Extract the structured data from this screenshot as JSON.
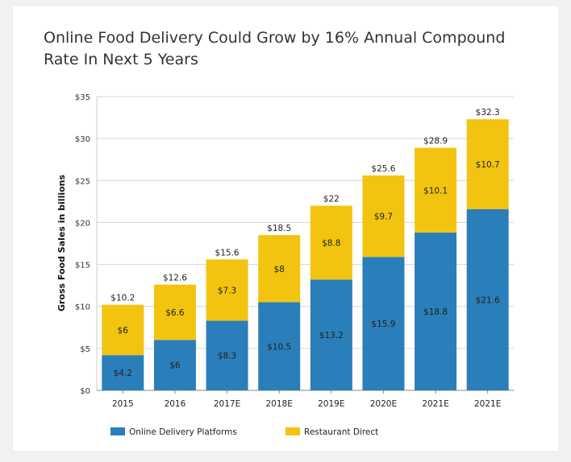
{
  "chart_data": {
    "type": "bar",
    "stacked": true,
    "title": "Online Food Delivery Could Grow by 16% Annual Compound Rate In Next 5 Years",
    "xlabel": "",
    "ylabel": "Gross Food Sales in billions",
    "ylim": [
      0,
      35
    ],
    "yticks": [
      0,
      5,
      10,
      15,
      20,
      25,
      30,
      35
    ],
    "ytick_prefix": "$",
    "grid": true,
    "legend_placement": "bottom",
    "categories": [
      "2015",
      "2016",
      "2017E",
      "2018E",
      "2019E",
      "2020E",
      "2021E",
      "2021E"
    ],
    "series": [
      {
        "name": "Online Delivery Platforms",
        "color": "#2a7fba",
        "values": [
          4.2,
          6,
          8.3,
          10.5,
          13.2,
          15.9,
          18.8,
          21.6
        ]
      },
      {
        "name": "Restaurant Direct",
        "color": "#f2c40f",
        "values": [
          6,
          6.6,
          7.3,
          8,
          8.8,
          9.7,
          10.1,
          10.7
        ]
      }
    ],
    "totals": [
      10.2,
      12.6,
      15.6,
      18.5,
      22,
      25.6,
      28.9,
      32.3
    ]
  }
}
